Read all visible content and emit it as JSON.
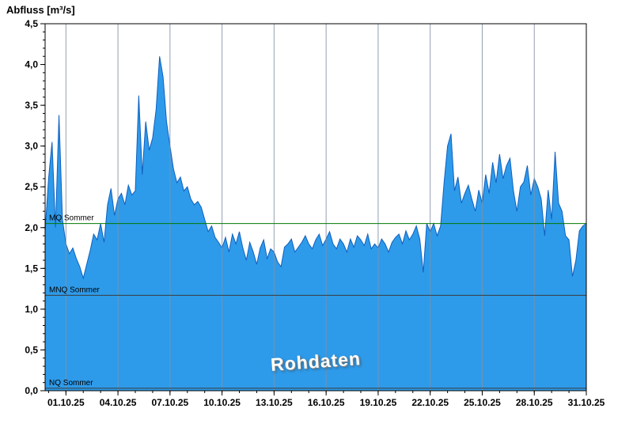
{
  "header": {
    "title": "Abfluss [m³/s]"
  },
  "watermark": "Rohdaten",
  "chart_data": {
    "type": "area",
    "title": "Abfluss [m³/s]",
    "ylabel": "Abfluss [m³/s]",
    "xlabel": "",
    "x_unit": "days relative to 01.10.25",
    "x_range": [
      -1.2,
      30
    ],
    "x_start": -1.2,
    "x_step": 0.2,
    "ylim": [
      0,
      4.5
    ],
    "y_ticks": [
      0,
      0.5,
      1.0,
      1.5,
      2.0,
      2.5,
      3.0,
      3.5,
      4.0,
      4.5
    ],
    "y_tick_labels": [
      "0,0",
      "0,5",
      "1,0",
      "1,5",
      "2,0",
      "2,5",
      "3,0",
      "3,5",
      "4,0",
      "4,5"
    ],
    "y_minor_step": 0.1,
    "x_tick_days": [
      0,
      3,
      6,
      9,
      12,
      15,
      18,
      21,
      24,
      27,
      30
    ],
    "x_tick_labels": [
      "01.10.25",
      "04.10.25",
      "07.10.25",
      "10.10.25",
      "13.10.25",
      "16.10.25",
      "19.10.25",
      "22.10.25",
      "25.10.25",
      "28.10.25",
      "31.10.25"
    ],
    "grid": "vertical-only",
    "legend": "none",
    "values": [
      1.95,
      2.6,
      3.05,
      2.0,
      3.38,
      2.1,
      1.8,
      1.68,
      1.75,
      1.62,
      1.52,
      1.38,
      1.55,
      1.72,
      1.92,
      1.85,
      2.05,
      1.82,
      2.28,
      2.48,
      2.15,
      2.35,
      2.42,
      2.28,
      2.52,
      2.4,
      2.45,
      3.62,
      2.65,
      3.3,
      2.95,
      3.1,
      3.45,
      4.1,
      3.85,
      3.3,
      3.0,
      2.72,
      2.55,
      2.62,
      2.45,
      2.5,
      2.35,
      2.28,
      2.32,
      2.25,
      2.1,
      1.95,
      2.02,
      1.88,
      1.82,
      1.75,
      1.88,
      1.7,
      1.92,
      1.8,
      1.95,
      1.75,
      1.6,
      1.82,
      1.7,
      1.55,
      1.75,
      1.85,
      1.62,
      1.74,
      1.7,
      1.58,
      1.52,
      1.76,
      1.8,
      1.86,
      1.7,
      1.76,
      1.82,
      1.9,
      1.8,
      1.74,
      1.85,
      1.92,
      1.78,
      1.86,
      1.95,
      1.8,
      1.74,
      1.86,
      1.8,
      1.7,
      1.86,
      1.76,
      1.9,
      1.85,
      1.78,
      1.92,
      1.74,
      1.8,
      1.75,
      1.86,
      1.8,
      1.7,
      1.82,
      1.88,
      1.92,
      1.8,
      1.96,
      1.85,
      1.92,
      2.02,
      1.86,
      1.45,
      2.05,
      1.95,
      2.05,
      1.9,
      2.02,
      2.55,
      3.0,
      3.15,
      2.45,
      2.62,
      2.3,
      2.42,
      2.52,
      2.35,
      2.2,
      2.46,
      2.3,
      2.65,
      2.42,
      2.8,
      2.55,
      2.9,
      2.6,
      2.76,
      2.85,
      2.45,
      2.2,
      2.5,
      2.56,
      2.76,
      2.4,
      2.6,
      2.5,
      2.35,
      1.9,
      2.46,
      2.1,
      2.93,
      2.3,
      2.2,
      1.9,
      1.85,
      1.4,
      1.6,
      1.96,
      2.02,
      2.05
    ],
    "reference_lines": [
      {
        "label": "MQ Sommer",
        "value": 2.05,
        "color": "#007a00"
      },
      {
        "label": "MNQ Sommer",
        "value": 1.17,
        "color": "#3a3a3a"
      },
      {
        "label": "NQ Sommer",
        "value": 0.03,
        "color": "#3a3a3a"
      }
    ],
    "colors": {
      "fill": "#2e9bea",
      "stroke": "#0f5fbf",
      "grid": "#8090a4",
      "axis": "#000000",
      "tick_text": "#000000"
    }
  }
}
